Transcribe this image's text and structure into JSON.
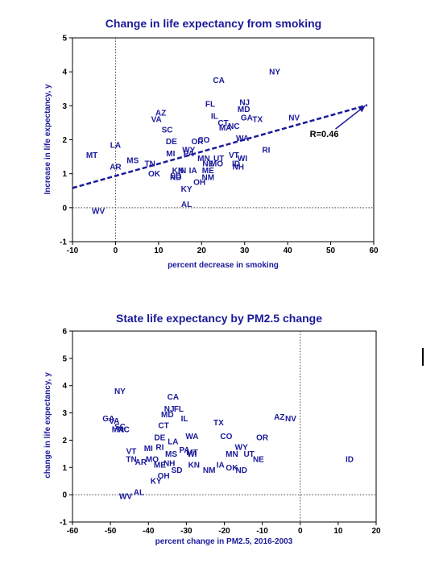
{
  "chart_data": [
    {
      "type": "scatter",
      "title": "Change in life expectancy from smoking",
      "xlabel": "percent decrease in smoking",
      "ylabel": "Increase in life expectancy, y",
      "xlim": [
        -10,
        60
      ],
      "ylim": [
        -1,
        5
      ],
      "xticks": [
        "-10",
        "0",
        "10",
        "20",
        "30",
        "40",
        "50",
        "60"
      ],
      "yticks": [
        "-1",
        "0",
        "1",
        "2",
        "3",
        "4",
        "5"
      ],
      "reference_lines": {
        "x": 0,
        "y": 0
      },
      "trendline": {
        "x": [
          -10,
          58.5
        ],
        "y": [
          0.58,
          3.02
        ]
      },
      "annotation": {
        "text": "R=0.46",
        "x": 48.5,
        "y": 2.08,
        "arrow_to": [
          58,
          3.0
        ]
      },
      "grid": false,
      "legend": "none",
      "points": [
        {
          "label": "NY",
          "x": 37,
          "y": 4.0
        },
        {
          "label": "CA",
          "x": 24,
          "y": 3.75
        },
        {
          "label": "NJ",
          "x": 30,
          "y": 3.1
        },
        {
          "label": "FL",
          "x": 22,
          "y": 3.05
        },
        {
          "label": "MD",
          "x": 29.8,
          "y": 2.9
        },
        {
          "label": "AZ",
          "x": 10.5,
          "y": 2.8
        },
        {
          "label": "IL",
          "x": 23,
          "y": 2.7
        },
        {
          "label": "GA",
          "x": 30.5,
          "y": 2.65
        },
        {
          "label": "NV",
          "x": 41.5,
          "y": 2.65
        },
        {
          "label": "VA",
          "x": 9.5,
          "y": 2.6
        },
        {
          "label": "TX",
          "x": 33,
          "y": 2.6
        },
        {
          "label": "CT",
          "x": 25,
          "y": 2.5
        },
        {
          "label": "NC",
          "x": 27.5,
          "y": 2.4
        },
        {
          "label": "MA",
          "x": 25.5,
          "y": 2.35
        },
        {
          "label": "SC",
          "x": 12,
          "y": 2.3
        },
        {
          "label": "WA",
          "x": 29.5,
          "y": 2.05
        },
        {
          "label": "CO",
          "x": 20.5,
          "y": 2.0
        },
        {
          "label": "OR",
          "x": 19,
          "y": 1.95
        },
        {
          "label": "DE",
          "x": 13,
          "y": 1.95
        },
        {
          "label": "LA",
          "x": 0,
          "y": 1.85
        },
        {
          "label": "RI",
          "x": 35,
          "y": 1.7
        },
        {
          "label": "WY",
          "x": 17,
          "y": 1.7
        },
        {
          "label": "PA",
          "x": 17,
          "y": 1.6
        },
        {
          "label": "MI",
          "x": 12.8,
          "y": 1.6
        },
        {
          "label": "MT",
          "x": -5.5,
          "y": 1.55
        },
        {
          "label": "VT",
          "x": 27.5,
          "y": 1.55
        },
        {
          "label": "WI",
          "x": 29.5,
          "y": 1.45
        },
        {
          "label": "MN",
          "x": 20.5,
          "y": 1.45
        },
        {
          "label": "UT",
          "x": 24,
          "y": 1.45
        },
        {
          "label": "MS",
          "x": 4,
          "y": 1.4
        },
        {
          "label": "TN",
          "x": 8,
          "y": 1.3
        },
        {
          "label": "NE",
          "x": 21.5,
          "y": 1.3
        },
        {
          "label": "MO",
          "x": 23.5,
          "y": 1.3
        },
        {
          "label": "ID",
          "x": 28,
          "y": 1.3
        },
        {
          "label": "NH",
          "x": 28.5,
          "y": 1.2
        },
        {
          "label": "AR",
          "x": 0,
          "y": 1.2
        },
        {
          "label": "ME",
          "x": 21.5,
          "y": 1.1
        },
        {
          "label": "KN",
          "x": 14.5,
          "y": 1.1
        },
        {
          "label": "IN",
          "x": 15.5,
          "y": 1.1
        },
        {
          "label": "IA",
          "x": 18,
          "y": 1.1
        },
        {
          "label": "OK",
          "x": 9,
          "y": 1.0
        },
        {
          "label": "SD",
          "x": 14,
          "y": 0.95
        },
        {
          "label": "ND",
          "x": 14,
          "y": 0.9
        },
        {
          "label": "NM",
          "x": 21.5,
          "y": 0.9
        },
        {
          "label": "OH",
          "x": 19.5,
          "y": 0.75
        },
        {
          "label": "KY",
          "x": 16.5,
          "y": 0.55
        },
        {
          "label": "AL",
          "x": 16.5,
          "y": 0.1
        },
        {
          "label": "WV",
          "x": -4,
          "y": -0.1
        }
      ]
    },
    {
      "type": "scatter",
      "title": "State life expectancy by PM2.5 change",
      "xlabel": "percent change in PM2.5, 2016-2003",
      "ylabel": "change in life expectancy, y",
      "xlim": [
        -60,
        20
      ],
      "ylim": [
        -1,
        6
      ],
      "xticks": [
        "-60",
        "-50",
        "-40",
        "-30",
        "-20",
        "-10",
        "0",
        "10",
        "20"
      ],
      "yticks": [
        "-1",
        "0",
        "1",
        "2",
        "3",
        "4",
        "5",
        "6"
      ],
      "reference_lines": {
        "x": 0,
        "y": 0
      },
      "grid": false,
      "legend": "none",
      "points": [
        {
          "label": "NY",
          "x": -47.5,
          "y": 3.8
        },
        {
          "label": "CA",
          "x": -33.5,
          "y": 3.6
        },
        {
          "label": "NJ",
          "x": -34.5,
          "y": 3.15
        },
        {
          "label": "FL",
          "x": -32,
          "y": 3.15
        },
        {
          "label": "MD",
          "x": -35,
          "y": 2.95
        },
        {
          "label": "AZ",
          "x": -5.5,
          "y": 2.85
        },
        {
          "label": "NV",
          "x": -2.5,
          "y": 2.8
        },
        {
          "label": "GA",
          "x": -50.5,
          "y": 2.8
        },
        {
          "label": "IL",
          "x": -30.5,
          "y": 2.8
        },
        {
          "label": "VA",
          "x": -49,
          "y": 2.7
        },
        {
          "label": "TX",
          "x": -21.5,
          "y": 2.65
        },
        {
          "label": "CT",
          "x": -36,
          "y": 2.55
        },
        {
          "label": "SC",
          "x": -47.5,
          "y": 2.5
        },
        {
          "label": "MA",
          "x": -48,
          "y": 2.4
        },
        {
          "label": "NC",
          "x": -46.5,
          "y": 2.4
        },
        {
          "label": "WA",
          "x": -28.5,
          "y": 2.15
        },
        {
          "label": "CO",
          "x": -19.5,
          "y": 2.15
        },
        {
          "label": "OR",
          "x": -10,
          "y": 2.1
        },
        {
          "label": "DE",
          "x": -37,
          "y": 2.1
        },
        {
          "label": "LA",
          "x": -33.5,
          "y": 1.95
        },
        {
          "label": "WY",
          "x": -15.5,
          "y": 1.75
        },
        {
          "label": "MI",
          "x": -40,
          "y": 1.7
        },
        {
          "label": "RI",
          "x": -37,
          "y": 1.75
        },
        {
          "label": "PA",
          "x": -30.5,
          "y": 1.65
        },
        {
          "label": "VT",
          "x": -44.5,
          "y": 1.6
        },
        {
          "label": "MS",
          "x": -34,
          "y": 1.5
        },
        {
          "label": "MT",
          "x": -28.5,
          "y": 1.55
        },
        {
          "label": "WI",
          "x": -28.5,
          "y": 1.5
        },
        {
          "label": "MN",
          "x": -18,
          "y": 1.5
        },
        {
          "label": "UT",
          "x": -13.5,
          "y": 1.5
        },
        {
          "label": "NE",
          "x": -11,
          "y": 1.3
        },
        {
          "label": "ID",
          "x": 13,
          "y": 1.3
        },
        {
          "label": "TN",
          "x": -44.5,
          "y": 1.3
        },
        {
          "label": "AR",
          "x": -42,
          "y": 1.2
        },
        {
          "label": "MO",
          "x": -39,
          "y": 1.3
        },
        {
          "label": "ME",
          "x": -37,
          "y": 1.1
        },
        {
          "label": "NH",
          "x": -34.5,
          "y": 1.15
        },
        {
          "label": "KN",
          "x": -28,
          "y": 1.1
        },
        {
          "label": "IA",
          "x": -21,
          "y": 1.1
        },
        {
          "label": "OK",
          "x": -18,
          "y": 1.0
        },
        {
          "label": "NM",
          "x": -24,
          "y": 0.9
        },
        {
          "label": "ND",
          "x": -15.5,
          "y": 0.9
        },
        {
          "label": "SD",
          "x": -32.5,
          "y": 0.9
        },
        {
          "label": "OH",
          "x": -36,
          "y": 0.7
        },
        {
          "label": "KY",
          "x": -38,
          "y": 0.5
        },
        {
          "label": "AL",
          "x": -42.5,
          "y": 0.1
        },
        {
          "label": "WV",
          "x": -46,
          "y": -0.05
        }
      ]
    }
  ]
}
